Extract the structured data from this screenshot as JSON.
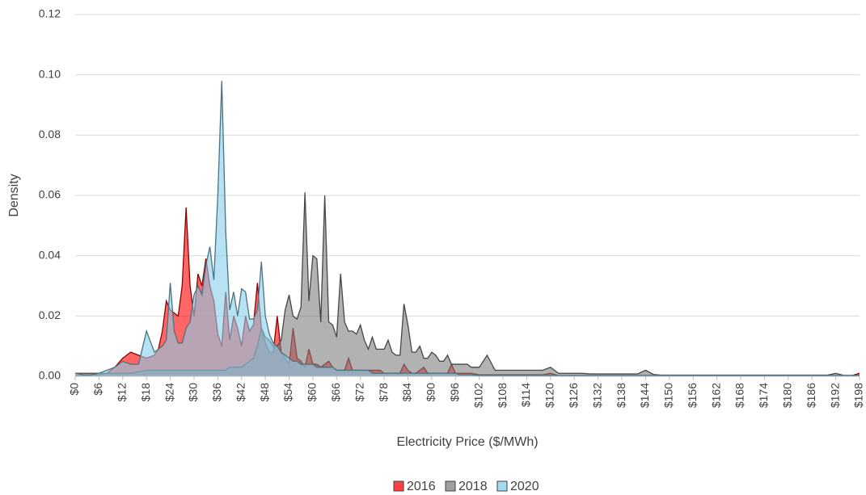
{
  "chart_data": {
    "type": "area",
    "x_label": "Electricity Price ($/MWh)",
    "y_label": "Density",
    "x": [
      0,
      2,
      4,
      6,
      8,
      10,
      12,
      14,
      16,
      18,
      20,
      21,
      22,
      23,
      24,
      25,
      26,
      27,
      28,
      29,
      30,
      31,
      32,
      33,
      34,
      35,
      36,
      37,
      38,
      39,
      40,
      41,
      42,
      43,
      44,
      45,
      46,
      47,
      48,
      49,
      50,
      51,
      52,
      53,
      54,
      55,
      56,
      57,
      58,
      59,
      60,
      61,
      62,
      63,
      64,
      65,
      66,
      67,
      68,
      69,
      70,
      71,
      72,
      73,
      74,
      75,
      76,
      77,
      78,
      79,
      80,
      81,
      82,
      83,
      84,
      85,
      86,
      87,
      88,
      89,
      90,
      91,
      92,
      93,
      94,
      95,
      96,
      97,
      98,
      99,
      100,
      102,
      104,
      106,
      108,
      110,
      112,
      114,
      116,
      118,
      120,
      122,
      124,
      126,
      128,
      130,
      132,
      134,
      136,
      138,
      140,
      142,
      144,
      146,
      148,
      150,
      152,
      154,
      156,
      158,
      160,
      162,
      164,
      166,
      168,
      170,
      172,
      174,
      176,
      178,
      180,
      182,
      184,
      186,
      188,
      190,
      192,
      194,
      196,
      198
    ],
    "series": [
      {
        "name": "2016",
        "color": "#ff0000",
        "values": [
          0.0003,
          0.0003,
          0.0003,
          0.0005,
          0.001,
          0.003,
          0.006,
          0.008,
          0.007,
          0.006,
          0.007,
          0.009,
          0.015,
          0.025,
          0.022,
          0.021,
          0.02,
          0.03,
          0.056,
          0.03,
          0.02,
          0.034,
          0.03,
          0.039,
          0.03,
          0.025,
          0.014,
          0.01,
          0.028,
          0.012,
          0.02,
          0.016,
          0.01,
          0.02,
          0.015,
          0.017,
          0.031,
          0.016,
          0.011,
          0.008,
          0.008,
          0.02,
          0.008,
          0.006,
          0.004,
          0.016,
          0.006,
          0.005,
          0.003,
          0.009,
          0.004,
          0.004,
          0.003,
          0.004,
          0.005,
          0.003,
          0.002,
          0.002,
          0.002,
          0.006,
          0.002,
          0.002,
          0.002,
          0.002,
          0.002,
          0.002,
          0.002,
          0.002,
          0.001,
          0.001,
          0.001,
          0.001,
          0.001,
          0.004,
          0.002,
          0.001,
          0.001,
          0.002,
          0.003,
          0.001,
          0.001,
          0.001,
          0.001,
          0.001,
          0.001,
          0.004,
          0.001,
          0.001,
          0.001,
          0.001,
          0.001,
          0.0005,
          0.0005,
          0.0005,
          0.0005,
          0.0005,
          0.0005,
          0.0005,
          0.0005,
          0.0005,
          0.001,
          0.0002,
          0.0002,
          0.0002,
          0.0002,
          0.0002,
          0.0002,
          0.0002,
          0.0002,
          0.0002,
          0.0002,
          0.0002,
          0.0002,
          0.0002,
          0.0002,
          0.0002,
          0.0002,
          0.0002,
          0.0002,
          0.0002,
          0.0002,
          0.0002,
          0.0002,
          0.0002,
          0.0002,
          0.0002,
          0.0002,
          0.0002,
          0.0002,
          0.0002,
          0.0002,
          0.0002,
          0.0002,
          0.0002,
          0.0002,
          0.0002,
          0.0002,
          0.0002,
          0.0002,
          0.001
        ]
      },
      {
        "name": "2018",
        "color": "#7f7f7f",
        "values": [
          0.001,
          0.001,
          0.001,
          0.001,
          0.001,
          0.001,
          0.001,
          0.001,
          0.0015,
          0.002,
          0.002,
          0.002,
          0.002,
          0.002,
          0.002,
          0.002,
          0.002,
          0.002,
          0.002,
          0.002,
          0.002,
          0.002,
          0.002,
          0.002,
          0.002,
          0.002,
          0.002,
          0.002,
          0.002,
          0.003,
          0.003,
          0.003,
          0.003,
          0.004,
          0.005,
          0.006,
          0.01,
          0.016,
          0.013,
          0.012,
          0.01,
          0.01,
          0.012,
          0.022,
          0.027,
          0.02,
          0.019,
          0.023,
          0.061,
          0.025,
          0.04,
          0.039,
          0.018,
          0.06,
          0.018,
          0.017,
          0.013,
          0.034,
          0.018,
          0.015,
          0.015,
          0.014,
          0.017,
          0.012,
          0.009,
          0.013,
          0.009,
          0.009,
          0.009,
          0.012,
          0.008,
          0.007,
          0.007,
          0.024,
          0.017,
          0.008,
          0.008,
          0.01,
          0.006,
          0.006,
          0.008,
          0.007,
          0.005,
          0.005,
          0.007,
          0.004,
          0.004,
          0.004,
          0.004,
          0.004,
          0.003,
          0.003,
          0.007,
          0.002,
          0.002,
          0.002,
          0.002,
          0.002,
          0.002,
          0.002,
          0.003,
          0.001,
          0.001,
          0.001,
          0.001,
          0.0008,
          0.0008,
          0.0008,
          0.0008,
          0.0008,
          0.0008,
          0.0008,
          0.002,
          0.0006,
          0.0004,
          0.0004,
          0.0004,
          0.0004,
          0.0004,
          0.0004,
          0.0004,
          0.0004,
          0.0004,
          0.0004,
          0.0004,
          0.0004,
          0.0004,
          0.0004,
          0.0004,
          0.0004,
          0.0004,
          0.0004,
          0.0004,
          0.0004,
          0.0004,
          0.0004,
          0.001,
          0.0003,
          0.0003,
          0.0003
        ]
      },
      {
        "name": "2020",
        "color": "#87cfeb",
        "values": [
          0.001,
          0.0005,
          0.0005,
          0.001,
          0.002,
          0.003,
          0.005,
          0.004,
          0.004,
          0.015,
          0.008,
          0.009,
          0.01,
          0.012,
          0.031,
          0.015,
          0.011,
          0.011,
          0.016,
          0.018,
          0.027,
          0.03,
          0.027,
          0.037,
          0.043,
          0.032,
          0.06,
          0.098,
          0.048,
          0.022,
          0.028,
          0.02,
          0.029,
          0.028,
          0.019,
          0.019,
          0.022,
          0.038,
          0.02,
          0.014,
          0.011,
          0.01,
          0.008,
          0.007,
          0.006,
          0.005,
          0.005,
          0.004,
          0.004,
          0.004,
          0.004,
          0.003,
          0.003,
          0.003,
          0.003,
          0.003,
          0.002,
          0.002,
          0.002,
          0.002,
          0.002,
          0.002,
          0.002,
          0.002,
          0.002,
          0.001,
          0.001,
          0.001,
          0.001,
          0.001,
          0.001,
          0.001,
          0.001,
          0.001,
          0.001,
          0.001,
          0.001,
          0.001,
          0.001,
          0.001,
          0.001,
          0.001,
          0.001,
          0.001,
          0.001,
          0.001,
          0.001,
          0.0005,
          0.0005,
          0.0005,
          0.0005,
          0.0003,
          0.0003,
          0.0003,
          0.0003,
          0.0003,
          0.0003,
          0.0003,
          0.0003,
          0.0003,
          0.0003,
          0.0003,
          0.0003,
          0.0003,
          0.0003,
          0.0003,
          0.0003,
          0.0003,
          0.0003,
          0.0003,
          0.0003,
          0.0003,
          0.0003,
          0.0003,
          0.0003,
          0.0003,
          0.0003,
          0.0003,
          0.0003,
          0.0003,
          0.0003,
          0.0003,
          0.0003,
          0.0003,
          0.0003,
          0.0003,
          0.0003,
          0.0003,
          0.0003,
          0.0003,
          0.0003,
          0.0003,
          0.0003,
          0.0003,
          0.0003,
          0.0003,
          0.0003,
          0.0003,
          0.0003,
          0.0003
        ]
      }
    ],
    "xlim": [
      0,
      198
    ],
    "xticks": [
      {
        "value": 0,
        "label": "$0"
      },
      {
        "value": 6,
        "label": "$6"
      },
      {
        "value": 12,
        "label": "$12"
      },
      {
        "value": 18,
        "label": "$18"
      },
      {
        "value": 24,
        "label": "$24"
      },
      {
        "value": 30,
        "label": "$30"
      },
      {
        "value": 36,
        "label": "$36"
      },
      {
        "value": 42,
        "label": "$42"
      },
      {
        "value": 48,
        "label": "$48"
      },
      {
        "value": 54,
        "label": "$54"
      },
      {
        "value": 60,
        "label": "$60"
      },
      {
        "value": 66,
        "label": "$66"
      },
      {
        "value": 72,
        "label": "$72"
      },
      {
        "value": 78,
        "label": "$78"
      },
      {
        "value": 84,
        "label": "$84"
      },
      {
        "value": 90,
        "label": "$90"
      },
      {
        "value": 96,
        "label": "$96"
      },
      {
        "value": 102,
        "label": "$102"
      },
      {
        "value": 108,
        "label": "$108"
      },
      {
        "value": 114,
        "label": "$114"
      },
      {
        "value": 120,
        "label": "$120"
      },
      {
        "value": 126,
        "label": "$126"
      },
      {
        "value": 132,
        "label": "$132"
      },
      {
        "value": 138,
        "label": "$138"
      },
      {
        "value": 144,
        "label": "$144"
      },
      {
        "value": 150,
        "label": "$150"
      },
      {
        "value": 156,
        "label": "$156"
      },
      {
        "value": 162,
        "label": "$162"
      },
      {
        "value": 168,
        "label": "$168"
      },
      {
        "value": 174,
        "label": "$174"
      },
      {
        "value": 180,
        "label": "$180"
      },
      {
        "value": 186,
        "label": "$186"
      },
      {
        "value": 192,
        "label": "$192"
      },
      {
        "value": 198,
        "label": "$198"
      }
    ],
    "ylim": [
      0,
      0.12
    ],
    "yticks": [
      {
        "value": 0,
        "label": "0.00"
      },
      {
        "value": 0.02,
        "label": "0.02"
      },
      {
        "value": 0.04,
        "label": "0.04"
      },
      {
        "value": 0.06,
        "label": "0.06"
      },
      {
        "value": 0.08,
        "label": "0.08"
      },
      {
        "value": 0.1,
        "label": "0.10"
      },
      {
        "value": 0.12,
        "label": "0.12"
      }
    ],
    "grid": true,
    "legend": "bottom"
  }
}
